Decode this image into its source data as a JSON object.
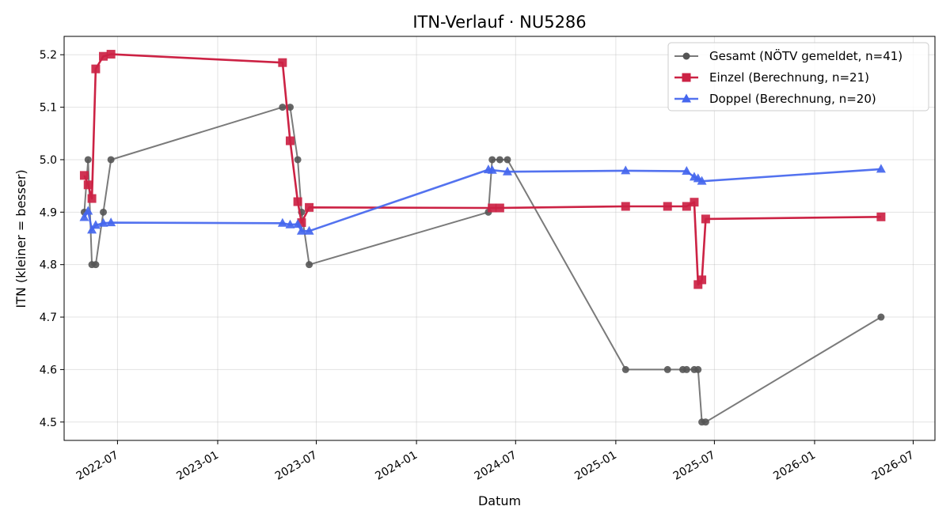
{
  "chart_data": {
    "type": "line",
    "title": "ITN-Verlauf · NU5286",
    "xlabel": "Datum",
    "ylabel": "ITN  (kleiner = besser)",
    "x_axis": "date",
    "xlim": [
      "2022-03-25",
      "2026-08-10"
    ],
    "ylim": [
      4.465,
      5.235
    ],
    "x_ticks": [
      "2022-07-01",
      "2023-01-01",
      "2023-07-01",
      "2024-01-01",
      "2024-07-01",
      "2025-01-01",
      "2025-07-01",
      "2026-01-01",
      "2026-07-01"
    ],
    "x_tick_labels": [
      "2022-07",
      "2023-01",
      "2023-07",
      "2024-01",
      "2024-07",
      "2025-01",
      "2025-07",
      "2026-01",
      "2026-07"
    ],
    "y_ticks": [
      4.5,
      4.6,
      4.7,
      4.8,
      4.9,
      5.0,
      5.1,
      5.2
    ],
    "y_tick_labels": [
      "4.5",
      "4.6",
      "4.7",
      "4.8",
      "4.9",
      "5.0",
      "5.1",
      "5.2"
    ],
    "grid": true,
    "legend_position": "top-right",
    "series": [
      {
        "name": "Gesamt (NÖTV gemeldet, n=41)",
        "color": "#555555",
        "marker": "circle",
        "points": [
          {
            "x": "2022-05-01",
            "y": 4.9
          },
          {
            "x": "2022-05-08",
            "y": 5.0
          },
          {
            "x": "2022-05-15",
            "y": 4.8
          },
          {
            "x": "2022-05-22",
            "y": 4.8
          },
          {
            "x": "2022-06-05",
            "y": 4.9
          },
          {
            "x": "2022-06-19",
            "y": 5.0
          },
          {
            "x": "2023-04-30",
            "y": 5.1
          },
          {
            "x": "2023-05-14",
            "y": 5.1
          },
          {
            "x": "2023-05-28",
            "y": 5.0
          },
          {
            "x": "2023-06-04",
            "y": 4.9
          },
          {
            "x": "2023-06-18",
            "y": 4.8
          },
          {
            "x": "2024-05-12",
            "y": 4.9
          },
          {
            "x": "2024-05-19",
            "y": 5.0
          },
          {
            "x": "2024-06-02",
            "y": 5.0
          },
          {
            "x": "2024-06-16",
            "y": 5.0
          },
          {
            "x": "2025-01-19",
            "y": 4.6
          },
          {
            "x": "2025-04-06",
            "y": 4.6
          },
          {
            "x": "2025-05-04",
            "y": 4.6
          },
          {
            "x": "2025-05-11",
            "y": 4.6
          },
          {
            "x": "2025-05-25",
            "y": 4.6
          },
          {
            "x": "2025-06-01",
            "y": 4.6
          },
          {
            "x": "2025-06-08",
            "y": 4.5
          },
          {
            "x": "2025-06-15",
            "y": 4.5
          },
          {
            "x": "2026-05-03",
            "y": 4.7
          }
        ]
      },
      {
        "name": "Einzel (Berechnung, n=21)",
        "color": "#cc2244",
        "marker": "square",
        "points": [
          {
            "x": "2022-05-01",
            "y": 4.97
          },
          {
            "x": "2022-05-08",
            "y": 4.952
          },
          {
            "x": "2022-05-15",
            "y": 4.926
          },
          {
            "x": "2022-05-22",
            "y": 5.173
          },
          {
            "x": "2022-06-05",
            "y": 5.197
          },
          {
            "x": "2022-06-19",
            "y": 5.201
          },
          {
            "x": "2023-04-30",
            "y": 5.185
          },
          {
            "x": "2023-05-14",
            "y": 5.036
          },
          {
            "x": "2023-05-28",
            "y": 4.92
          },
          {
            "x": "2023-06-04",
            "y": 4.88
          },
          {
            "x": "2023-06-18",
            "y": 4.909
          },
          {
            "x": "2024-05-19",
            "y": 4.908
          },
          {
            "x": "2024-06-02",
            "y": 4.908
          },
          {
            "x": "2025-01-19",
            "y": 4.911
          },
          {
            "x": "2025-04-06",
            "y": 4.911
          },
          {
            "x": "2025-05-11",
            "y": 4.911
          },
          {
            "x": "2025-05-25",
            "y": 4.919
          },
          {
            "x": "2025-06-01",
            "y": 4.762
          },
          {
            "x": "2025-06-08",
            "y": 4.771
          },
          {
            "x": "2025-06-15",
            "y": 4.887
          },
          {
            "x": "2026-05-03",
            "y": 4.891
          }
        ]
      },
      {
        "name": "Doppel (Berechnung, n=20)",
        "color": "#4466ee",
        "marker": "triangle",
        "points": [
          {
            "x": "2022-05-01",
            "y": 4.89
          },
          {
            "x": "2022-05-08",
            "y": 4.902
          },
          {
            "x": "2022-05-15",
            "y": 4.866
          },
          {
            "x": "2022-05-22",
            "y": 4.875
          },
          {
            "x": "2022-06-05",
            "y": 4.879
          },
          {
            "x": "2022-06-19",
            "y": 4.88
          },
          {
            "x": "2023-04-30",
            "y": 4.879
          },
          {
            "x": "2023-05-14",
            "y": 4.876
          },
          {
            "x": "2023-05-28",
            "y": 4.877
          },
          {
            "x": "2023-06-04",
            "y": 4.864
          },
          {
            "x": "2023-06-18",
            "y": 4.864
          },
          {
            "x": "2024-05-12",
            "y": 4.981
          },
          {
            "x": "2024-05-19",
            "y": 4.98
          },
          {
            "x": "2024-06-16",
            "y": 4.977
          },
          {
            "x": "2025-01-19",
            "y": 4.979
          },
          {
            "x": "2025-05-11",
            "y": 4.978
          },
          {
            "x": "2025-05-25",
            "y": 4.967
          },
          {
            "x": "2025-06-01",
            "y": 4.964
          },
          {
            "x": "2025-06-08",
            "y": 4.959
          },
          {
            "x": "2026-05-03",
            "y": 4.982
          }
        ]
      }
    ]
  }
}
